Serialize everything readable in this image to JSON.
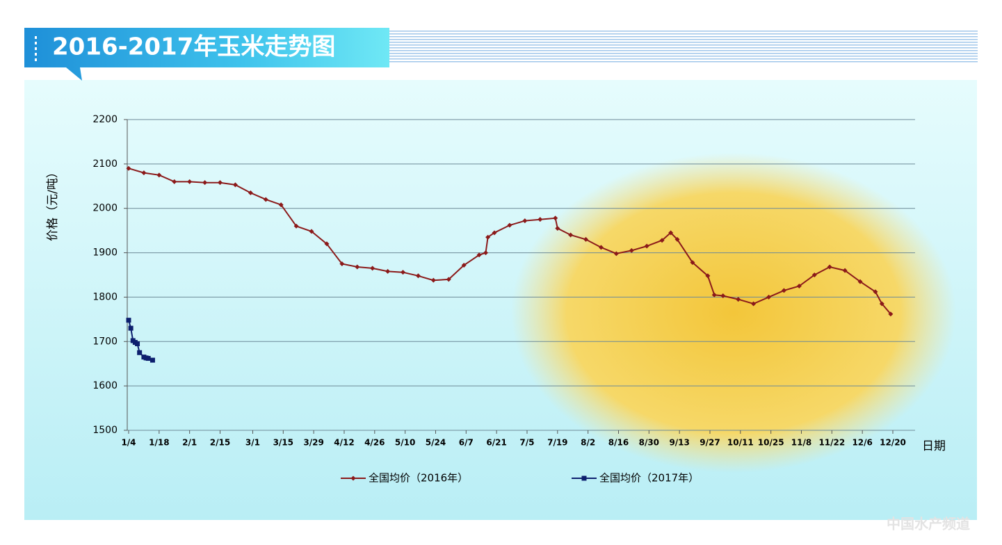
{
  "chart_data": {
    "type": "line",
    "title": "2016-2017年玉米走势图",
    "y_label": "价格（元/吨）",
    "x_label": "日期",
    "xticks": [
      "1/4",
      "1/18",
      "2/1",
      "2/15",
      "3/1",
      "3/15",
      "3/29",
      "4/12",
      "4/26",
      "5/10",
      "5/24",
      "6/7",
      "6/21",
      "7/5",
      "7/19",
      "8/2",
      "8/16",
      "8/30",
      "9/13",
      "9/27",
      "10/11",
      "10/25",
      "11/8",
      "11/22",
      "12/6",
      "12/20"
    ],
    "ylim": [
      1500,
      2200
    ],
    "yticks": [
      1500,
      1600,
      1700,
      1800,
      1900,
      2000,
      2100,
      2200
    ],
    "grid": true,
    "series": [
      {
        "name": "全国均价（2016年）",
        "color": "#8b1a1a",
        "marker": "diamond",
        "x": [
          "1/4",
          "1/11",
          "1/18",
          "1/25",
          "2/1",
          "2/8",
          "2/15",
          "2/22",
          "2/29",
          "3/7",
          "3/14",
          "3/21",
          "3/28",
          "4/4",
          "4/11",
          "4/18",
          "4/25",
          "5/2",
          "5/9",
          "5/16",
          "5/23",
          "5/30",
          "6/6",
          "6/13",
          "6/16",
          "6/17",
          "6/20",
          "6/27",
          "7/4",
          "7/11",
          "7/18",
          "7/19",
          "7/25",
          "8/1",
          "8/8",
          "8/15",
          "8/22",
          "8/29",
          "9/5",
          "9/9",
          "9/12",
          "9/19",
          "9/26",
          "9/29",
          "10/3",
          "10/10",
          "10/17",
          "10/24",
          "10/31",
          "11/7",
          "11/14",
          "11/21",
          "11/28",
          "12/5",
          "12/12",
          "12/15",
          "12/19"
        ],
        "values": [
          2090,
          2080,
          2075,
          2060,
          2060,
          2058,
          2058,
          2053,
          2035,
          2020,
          2008,
          1960,
          1948,
          1920,
          1875,
          1868,
          1865,
          1858,
          1856,
          1848,
          1838,
          1840,
          1872,
          1895,
          1900,
          1935,
          1945,
          1962,
          1972,
          1975,
          1978,
          1955,
          1940,
          1930,
          1912,
          1898,
          1905,
          1915,
          1928,
          1945,
          1930,
          1878,
          1848,
          1805,
          1803,
          1795,
          1785,
          1800,
          1815,
          1825,
          1850,
          1868,
          1860,
          1835,
          1812,
          1785,
          1762
        ]
      },
      {
        "name": "全国均价（2017年）",
        "color": "#0d1f6e",
        "marker": "square",
        "x": [
          "1/4",
          "1/5",
          "1/6",
          "1/7",
          "1/8",
          "1/9",
          "1/11",
          "1/12",
          "1/13",
          "1/15"
        ],
        "values": [
          1748,
          1730,
          1702,
          1698,
          1695,
          1675,
          1665,
          1663,
          1662,
          1658
        ]
      }
    ],
    "watermark": "中国水产频道"
  }
}
